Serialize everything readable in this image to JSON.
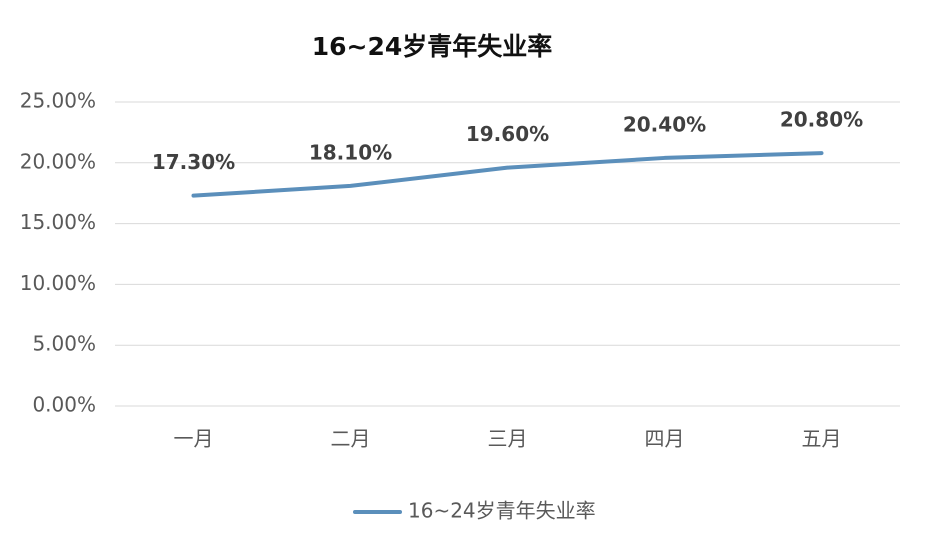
{
  "chart_data": {
    "type": "line",
    "title": "16~24岁青年失业率",
    "categories": [
      "一月",
      "二月",
      "三月",
      "四月",
      "五月"
    ],
    "series": [
      {
        "name": "16~24岁青年失业率",
        "color": "#5b8fbb",
        "values": [
          17.3,
          18.1,
          19.6,
          20.4,
          20.8
        ],
        "value_labels": [
          "17.30%",
          "18.10%",
          "19.60%",
          "20.40%",
          "20.80%"
        ]
      }
    ],
    "ylim": [
      0,
      25
    ],
    "yticks": [
      {
        "value": 0,
        "label": "0.00%"
      },
      {
        "value": 5,
        "label": "5.00%"
      },
      {
        "value": 10,
        "label": "10.00%"
      },
      {
        "value": 15,
        "label": "15.00%"
      },
      {
        "value": 20,
        "label": "20.00%"
      },
      {
        "value": 25,
        "label": "25.00%"
      }
    ],
    "grid": true,
    "legend": "bottom"
  }
}
